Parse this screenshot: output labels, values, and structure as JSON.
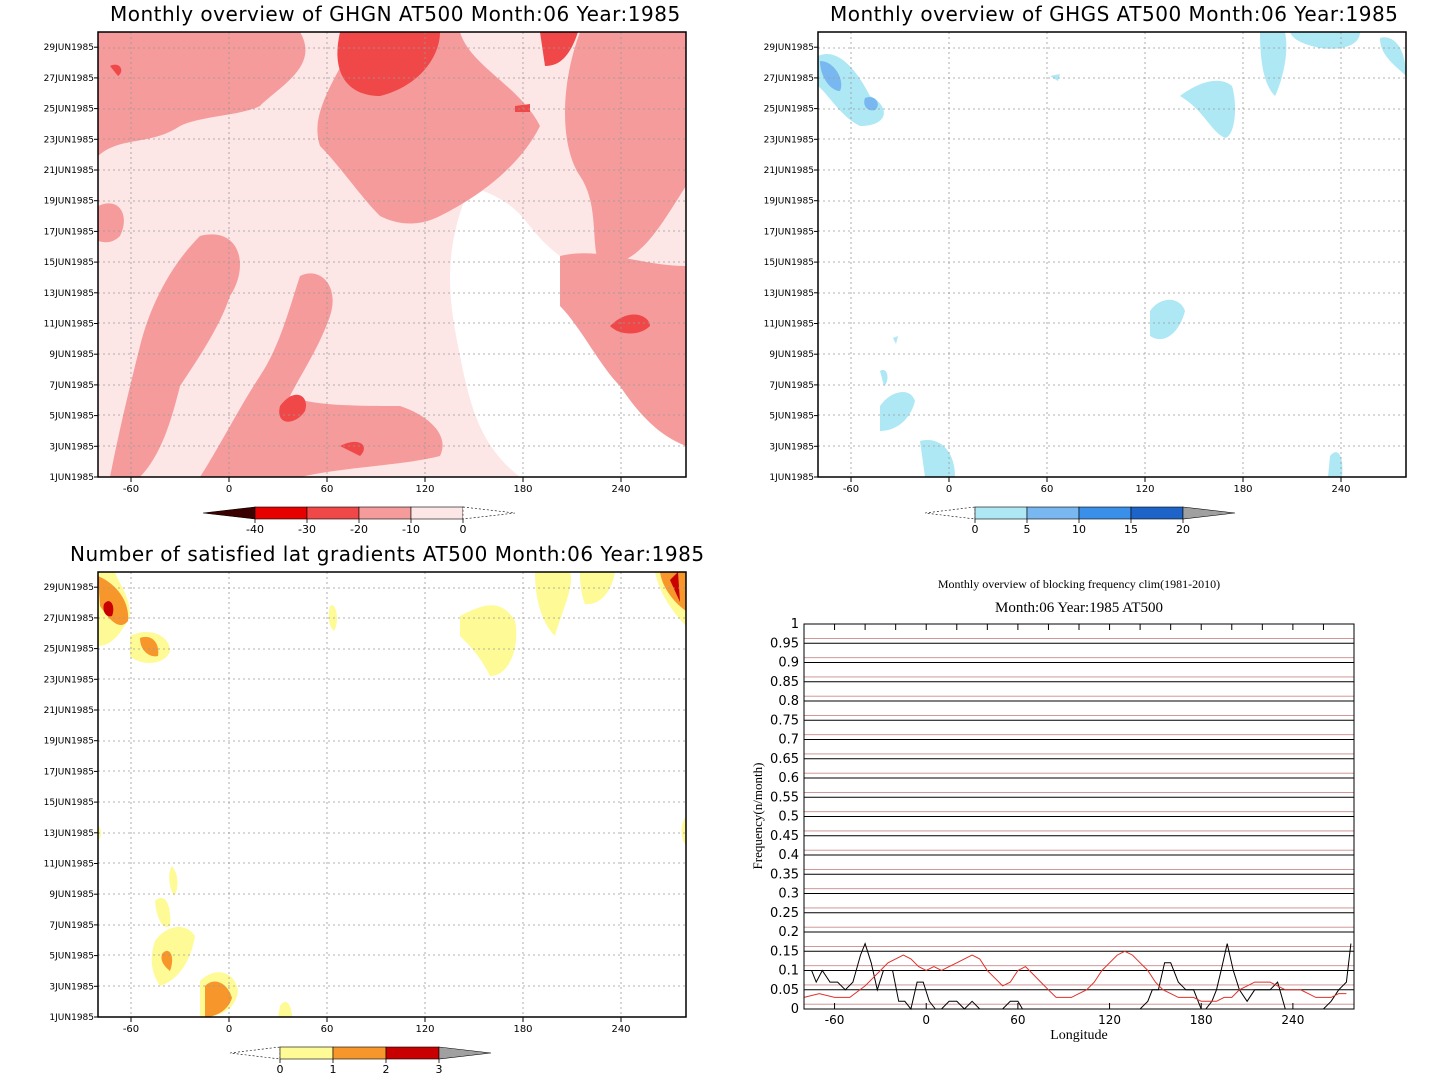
{
  "panels": [
    {
      "title": "Monthly overview of GHGN AT500 Month:06 Year:1985",
      "y_ticks": [
        "1JUN1985",
        "3JUN1985",
        "5JUN1985",
        "7JUN1985",
        "9JUN1985",
        "11JUN1985",
        "13JUN1985",
        "15JUN1985",
        "17JUN1985",
        "19JUN1985",
        "21JUN1985",
        "23JUN1985",
        "25JUN1985",
        "27JUN1985",
        "29JUN1985"
      ],
      "x_ticks": [
        "-60",
        "0",
        "60",
        "120",
        "180",
        "240"
      ],
      "colorbar": {
        "labels": [
          "-40",
          "-30",
          "-20",
          "-10",
          "0"
        ],
        "colors": [
          "#3b0000",
          "#e60000",
          "#f04848",
          "#f59b9b",
          "#fde6e6",
          "#ffffff"
        ]
      }
    },
    {
      "title": "Monthly overview of GHGS AT500 Month:06 Year:1985",
      "y_ticks": [
        "1JUN1985",
        "3JUN1985",
        "5JUN1985",
        "7JUN1985",
        "9JUN1985",
        "11JUN1985",
        "13JUN1985",
        "15JUN1985",
        "17JUN1985",
        "19JUN1985",
        "21JUN1985",
        "23JUN1985",
        "25JUN1985",
        "27JUN1985",
        "29JUN1985"
      ],
      "x_ticks": [
        "-60",
        "0",
        "60",
        "120",
        "180",
        "240"
      ],
      "colorbar": {
        "labels": [
          "0",
          "5",
          "10",
          "15",
          "20"
        ],
        "colors": [
          "#ffffff",
          "#aee8f5",
          "#78b7ef",
          "#3a8fe8",
          "#1e63c8",
          "#a0a0a0"
        ]
      }
    },
    {
      "title": "Number of satisfied lat gradients AT500 Month:06 Year:1985",
      "y_ticks": [
        "1JUN1985",
        "3JUN1985",
        "5JUN1985",
        "7JUN1985",
        "9JUN1985",
        "11JUN1985",
        "13JUN1985",
        "15JUN1985",
        "17JUN1985",
        "19JUN1985",
        "21JUN1985",
        "23JUN1985",
        "25JUN1985",
        "27JUN1985",
        "29JUN1985"
      ],
      "x_ticks": [
        "-60",
        "0",
        "60",
        "120",
        "180",
        "240"
      ],
      "colorbar": {
        "labels": [
          "0",
          "1",
          "2",
          "3"
        ],
        "colors": [
          "#ffffff",
          "#fefa96",
          "#f7962a",
          "#c80000",
          "#a0a0a0"
        ]
      }
    }
  ],
  "freq_panel": {
    "title1": "Monthly overview of blocking frequency clim(1981-2010)",
    "title2": "Month:06 Year:1985  AT500",
    "ylabel": "Frequency(n/month)",
    "xlabel": "Longitude",
    "y_ticks": [
      "0",
      "0.05",
      "0.1",
      "0.15",
      "0.2",
      "0.25",
      "0.3",
      "0.35",
      "0.4",
      "0.45",
      "0.5",
      "0.55",
      "0.6",
      "0.65",
      "0.7",
      "0.75",
      "0.8",
      "0.85",
      "0.9",
      "0.95",
      "1"
    ],
    "x_ticks": [
      "-60",
      "0",
      "60",
      "120",
      "180",
      "240"
    ]
  },
  "chart_data": [
    {
      "type": "heatmap",
      "title": "Monthly overview of GHGN AT500 Month:06 Year:1985",
      "x_range": [
        -80,
        280
      ],
      "y_range": [
        "1JUN1985",
        "30JUN1985"
      ],
      "levels": [
        -40,
        -30,
        -20,
        -10,
        0
      ]
    },
    {
      "type": "heatmap",
      "title": "Monthly overview of GHGS AT500 Month:06 Year:1985",
      "x_range": [
        -80,
        280
      ],
      "y_range": [
        "1JUN1985",
        "30JUN1985"
      ],
      "levels": [
        0,
        5,
        10,
        15,
        20
      ]
    },
    {
      "type": "heatmap",
      "title": "Number of satisfied lat gradients AT500 Month:06 Year:1985",
      "x_range": [
        -80,
        280
      ],
      "y_range": [
        "1JUN1985",
        "30JUN1985"
      ],
      "levels": [
        0,
        1,
        2,
        3
      ]
    },
    {
      "type": "line",
      "title": "Month:06 Year:1985  AT500",
      "xlabel": "Longitude",
      "ylabel": "Frequency(n/month)",
      "xlim": [
        -80,
        280
      ],
      "ylim": [
        0,
        1
      ],
      "series": [
        {
          "color": "#000000",
          "x": [
            -80,
            -75,
            -72,
            -68,
            -63,
            -58,
            -53,
            -48,
            -43,
            -40,
            -36,
            -32,
            -28,
            -22,
            -18,
            -14,
            -10,
            -6,
            -2,
            2,
            6,
            10,
            15,
            20,
            25,
            30,
            35,
            40,
            45,
            50,
            55,
            60,
            63,
            67,
            72,
            78,
            85,
            90,
            95,
            100,
            105,
            110,
            115,
            120,
            125,
            130,
            135,
            140,
            145,
            148,
            152,
            156,
            160,
            165,
            170,
            175,
            180,
            183,
            187,
            190,
            193,
            197,
            201,
            205,
            210,
            215,
            220,
            225,
            230,
            235,
            240,
            245,
            250,
            255,
            260,
            265,
            270,
            275,
            278
          ],
          "y": [
            0.1,
            0.1,
            0.07,
            0.1,
            0.07,
            0.07,
            0.05,
            0.07,
            0.14,
            0.17,
            0.12,
            0.05,
            0.1,
            0.1,
            0.02,
            0.02,
            0.0,
            0.07,
            0.07,
            0.02,
            0.0,
            0.0,
            0.02,
            0.02,
            0.0,
            0.02,
            0.0,
            0.0,
            0.0,
            0.0,
            0.02,
            0.02,
            0.0,
            0.0,
            0.0,
            0.0,
            0.0,
            0.0,
            0.0,
            0.0,
            0.0,
            0.0,
            0.0,
            0.0,
            0.0,
            0.0,
            0.0,
            0.0,
            0.02,
            0.05,
            0.05,
            0.12,
            0.12,
            0.07,
            0.05,
            0.05,
            0.0,
            0.0,
            0.02,
            0.05,
            0.1,
            0.17,
            0.1,
            0.05,
            0.02,
            0.05,
            0.05,
            0.05,
            0.07,
            0.0,
            0.0,
            0.0,
            0.0,
            0.0,
            0.0,
            0.02,
            0.05,
            0.07,
            0.17
          ]
        },
        {
          "color": "#e0302a",
          "x": [
            -80,
            -70,
            -60,
            -50,
            -40,
            -35,
            -30,
            -25,
            -20,
            -15,
            -10,
            -5,
            0,
            5,
            10,
            15,
            20,
            25,
            30,
            35,
            40,
            45,
            50,
            55,
            60,
            65,
            70,
            75,
            80,
            85,
            90,
            95,
            100,
            105,
            110,
            115,
            120,
            125,
            130,
            135,
            140,
            145,
            150,
            155,
            160,
            165,
            170,
            175,
            180,
            185,
            190,
            195,
            200,
            205,
            210,
            215,
            220,
            225,
            230,
            235,
            240,
            245,
            250,
            255,
            260,
            265,
            270,
            275
          ],
          "y": [
            0.03,
            0.04,
            0.03,
            0.03,
            0.06,
            0.08,
            0.1,
            0.12,
            0.13,
            0.14,
            0.13,
            0.11,
            0.1,
            0.11,
            0.1,
            0.11,
            0.12,
            0.13,
            0.14,
            0.13,
            0.1,
            0.08,
            0.06,
            0.07,
            0.1,
            0.11,
            0.09,
            0.07,
            0.05,
            0.03,
            0.03,
            0.03,
            0.04,
            0.05,
            0.07,
            0.1,
            0.12,
            0.14,
            0.15,
            0.14,
            0.12,
            0.1,
            0.07,
            0.05,
            0.04,
            0.03,
            0.03,
            0.03,
            0.02,
            0.02,
            0.02,
            0.03,
            0.03,
            0.05,
            0.06,
            0.07,
            0.07,
            0.07,
            0.06,
            0.05,
            0.05,
            0.05,
            0.04,
            0.03,
            0.03,
            0.03,
            0.04,
            0.04
          ]
        }
      ]
    }
  ]
}
